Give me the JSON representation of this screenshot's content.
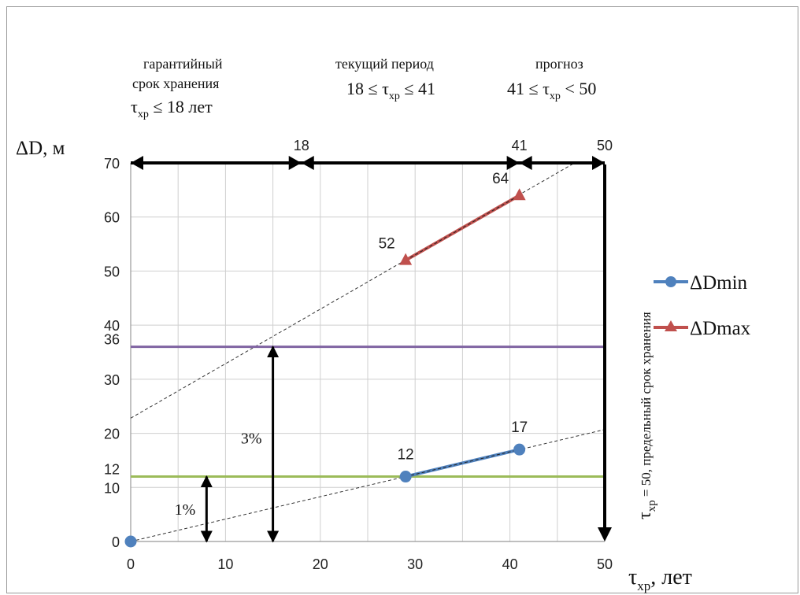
{
  "chart_data": {
    "type": "line",
    "xlim": [
      0,
      50
    ],
    "ylim": [
      0,
      70
    ],
    "x_ticks": [
      "0",
      "10",
      "20",
      "30",
      "40",
      "50"
    ],
    "y_ticks": [
      "0",
      "10",
      "20",
      "30",
      "40",
      "50",
      "60",
      "70"
    ],
    "xlabel": {
      "main": "τ",
      "sub": "хр",
      "rest": ", лет"
    },
    "ylabel": "ΔD, м",
    "grid": true,
    "legend_position": "right",
    "series": [
      {
        "name": "ΔDmin",
        "color": "#4f81bd",
        "marker": "circle",
        "x": [
          29,
          41
        ],
        "y": [
          12,
          17
        ],
        "labels": [
          "12",
          "17"
        ]
      },
      {
        "name": "ΔDmax",
        "color": "#c0504d",
        "marker": "triangle",
        "x": [
          29,
          41
        ],
        "y": [
          52,
          64
        ],
        "labels": [
          "52",
          "64"
        ]
      }
    ],
    "origin_point": {
      "x": 0,
      "y": 0,
      "color": "#4f81bd"
    },
    "trend_lines": [
      {
        "x": [
          0,
          50
        ],
        "y": [
          0,
          20.7
        ]
      },
      {
        "x": [
          0,
          50
        ],
        "y": [
          22.8,
          73.2
        ]
      }
    ],
    "hlines": [
      {
        "y": 12,
        "color": "#9bbb59",
        "label": "12"
      },
      {
        "y": 36,
        "color": "#8064a2",
        "label": "36"
      }
    ],
    "period_bar": {
      "y": 70,
      "boundaries": [
        0,
        18,
        41,
        50
      ],
      "labels": [
        "18",
        "41",
        "50"
      ]
    },
    "vertical_arrows": [
      {
        "x": 8,
        "y": [
          0,
          12
        ],
        "label": "1%"
      },
      {
        "x": 15,
        "y": [
          0,
          36
        ],
        "label": "3%"
      }
    ],
    "limit_line": {
      "x": 50
    },
    "annotations": {
      "period1": {
        "line1": "гарантийный",
        "line2": "срок хранения",
        "tau": "τ",
        "sub": "хр",
        "cond": " ≤ 18 лет"
      },
      "period2": {
        "line1": "текущий период",
        "left": "18 ≤ τ",
        "sub": "хр",
        "right": " ≤ 41"
      },
      "period3": {
        "line1": "прогноз",
        "left": "41 ≤ τ",
        "sub": "хр",
        "right": " < 50"
      },
      "limit": {
        "tau": "τ",
        "sub": "хр",
        "text": " = 50, предельный срок хранения"
      }
    }
  }
}
